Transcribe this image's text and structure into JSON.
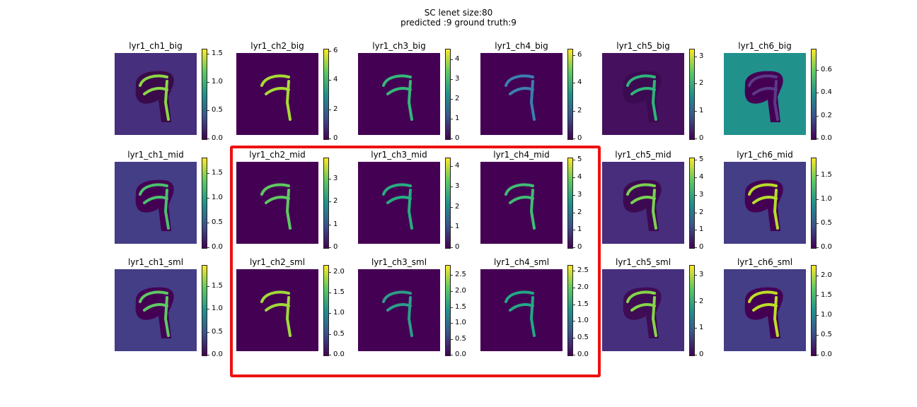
{
  "chart_data": {
    "type": "heatmap",
    "title_lines": [
      "SC lenet size:80",
      "predicted :9 ground truth:9"
    ],
    "colormap": "viridis",
    "highlight_color": "#ee1111",
    "panels": [
      {
        "id": "lyr1_ch1_big",
        "title": "lyr1_ch1_big",
        "bg": "#462f7c",
        "fg": "#3a0a4a",
        "stroke": "#8bd646",
        "ticks": [
          "0.0",
          "0.5",
          "1.0",
          "1.5"
        ],
        "tick_values": [
          0,
          0.5,
          1.0,
          1.5
        ],
        "vmax": 1.57
      },
      {
        "id": "lyr1_ch2_big",
        "title": "lyr1_ch2_big",
        "bg": "#440154",
        "fg": "#440154",
        "stroke": "#a8db34",
        "ticks": [
          "0",
          "2",
          "4",
          "6"
        ],
        "tick_values": [
          0,
          2,
          4,
          6
        ],
        "vmax": 6.1
      },
      {
        "id": "lyr1_ch3_big",
        "title": "lyr1_ch3_big",
        "bg": "#440154",
        "fg": "#440154",
        "stroke": "#35b779",
        "ticks": [
          "0",
          "1",
          "2",
          "3",
          "4"
        ],
        "tick_values": [
          0,
          1,
          2,
          3,
          4
        ],
        "vmax": 4.5
      },
      {
        "id": "lyr1_ch4_big",
        "title": "lyr1_ch4_big",
        "bg": "#440154",
        "fg": "#440154",
        "stroke": "#3b7fb0",
        "ticks": [
          "0",
          "2",
          "4",
          "6"
        ],
        "tick_values": [
          0,
          2,
          4,
          6
        ],
        "vmax": 6.4
      },
      {
        "id": "lyr1_ch5_big",
        "title": "lyr1_ch5_big",
        "bg": "#45115f",
        "fg": "#3c0a50",
        "stroke": "#2fb47c",
        "ticks": [
          "0",
          "1",
          "2",
          "3"
        ],
        "tick_values": [
          0,
          1,
          2,
          3
        ],
        "vmax": 3.25
      },
      {
        "id": "lyr1_ch6_big",
        "title": "lyr1_ch6_big",
        "bg": "#21918c",
        "fg": "#440154",
        "stroke": "#5c3a88",
        "ticks": [
          "0.0",
          "0.2",
          "0.4",
          "0.6"
        ],
        "tick_values": [
          0,
          0.2,
          0.4,
          0.6
        ],
        "vmax": 0.78
      },
      {
        "id": "lyr1_ch1_mid",
        "title": "lyr1_ch1_mid",
        "bg": "#433e85",
        "fg": "#440154",
        "stroke": "#4ac16d",
        "ticks": [
          "0.0",
          "0.5",
          "1.0",
          "1.5"
        ],
        "tick_values": [
          0,
          0.5,
          1.0,
          1.5
        ],
        "vmax": 1.8
      },
      {
        "id": "lyr1_ch2_mid",
        "title": "lyr1_ch2_mid",
        "bg": "#440154",
        "fg": "#440154",
        "stroke": "#5ec962",
        "ticks": [
          "0",
          "1",
          "2",
          "3"
        ],
        "tick_values": [
          0,
          1,
          2,
          3
        ],
        "vmax": 3.9
      },
      {
        "id": "lyr1_ch3_mid",
        "title": "lyr1_ch3_mid",
        "bg": "#440154",
        "fg": "#440154",
        "stroke": "#27ad81",
        "ticks": [
          "0",
          "1",
          "2",
          "3",
          "4"
        ],
        "tick_values": [
          0,
          1,
          2,
          3,
          4
        ],
        "vmax": 4.4
      },
      {
        "id": "lyr1_ch4_mid",
        "title": "lyr1_ch4_mid",
        "bg": "#440154",
        "fg": "#440154",
        "stroke": "#3fbc73",
        "ticks": [
          "0",
          "1",
          "2",
          "3",
          "4",
          "5"
        ],
        "tick_values": [
          0,
          1,
          2,
          3,
          4,
          5
        ],
        "vmax": 5.1
      },
      {
        "id": "lyr1_ch5_mid",
        "title": "lyr1_ch5_mid",
        "bg": "#472d7b",
        "fg": "#3d0a52",
        "stroke": "#7ad151",
        "ticks": [
          "0",
          "1",
          "2",
          "3",
          "4",
          "5"
        ],
        "tick_values": [
          0,
          1,
          2,
          3,
          4,
          5
        ],
        "vmax": 5.1
      },
      {
        "id": "lyr1_ch6_mid",
        "title": "lyr1_ch6_mid",
        "bg": "#433e85",
        "fg": "#440154",
        "stroke": "#b5de2b",
        "ticks": [
          "0.0",
          "0.5",
          "1.0",
          "1.5"
        ],
        "tick_values": [
          0,
          0.5,
          1.0,
          1.5
        ],
        "vmax": 1.85
      },
      {
        "id": "lyr1_ch1_sml",
        "title": "lyr1_ch1_sml",
        "bg": "#433e85",
        "fg": "#440154",
        "stroke": "#5ec962",
        "ticks": [
          "0.0",
          "0.5",
          "1.0",
          "1.5"
        ],
        "tick_values": [
          0,
          0.5,
          1.0,
          1.5
        ],
        "vmax": 1.95
      },
      {
        "id": "lyr1_ch2_sml",
        "title": "lyr1_ch2_sml",
        "bg": "#440154",
        "fg": "#440154",
        "stroke": "#9fda3a",
        "ticks": [
          "0.0",
          "0.5",
          "1.0",
          "1.5",
          "2.0"
        ],
        "tick_values": [
          0,
          0.5,
          1.0,
          1.5,
          2.0
        ],
        "vmax": 2.15
      },
      {
        "id": "lyr1_ch3_sml",
        "title": "lyr1_ch3_sml",
        "bg": "#440154",
        "fg": "#440154",
        "stroke": "#2c9d89",
        "ticks": [
          "0.0",
          "0.5",
          "1.0",
          "1.5",
          "2.0",
          "2.5"
        ],
        "tick_values": [
          0,
          0.5,
          1.0,
          1.5,
          2.0,
          2.5
        ],
        "vmax": 2.8
      },
      {
        "id": "lyr1_ch4_sml",
        "title": "lyr1_ch4_sml",
        "bg": "#440154",
        "fg": "#440154",
        "stroke": "#22a884",
        "ticks": [
          "0.0",
          "0.5",
          "1.0",
          "1.5",
          "2.0",
          "2.5"
        ],
        "tick_values": [
          0,
          0.5,
          1.0,
          1.5,
          2.0,
          2.5
        ],
        "vmax": 2.65
      },
      {
        "id": "lyr1_ch5_sml",
        "title": "lyr1_ch5_sml",
        "bg": "#46307e",
        "fg": "#3e0d55",
        "stroke": "#86d549",
        "ticks": [
          "0",
          "1",
          "2",
          "3"
        ],
        "tick_values": [
          0,
          1,
          2,
          3
        ],
        "vmax": 3.35
      },
      {
        "id": "lyr1_ch6_sml",
        "title": "lyr1_ch6_sml",
        "bg": "#433e85",
        "fg": "#440154",
        "stroke": "#bddf26",
        "ticks": [
          "0.0",
          "0.5",
          "1.0",
          "1.5",
          "2.0"
        ],
        "tick_values": [
          0,
          0.5,
          1.0,
          1.5,
          2.0
        ],
        "vmax": 2.25
      }
    ]
  }
}
